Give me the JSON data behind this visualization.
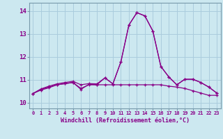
{
  "xlabel": "Windchill (Refroidissement éolien,°C)",
  "background_color": "#cce8f0",
  "line_color": "#880088",
  "grid_color": "#aaccdd",
  "x_ticks": [
    0,
    1,
    2,
    3,
    4,
    5,
    6,
    7,
    8,
    9,
    10,
    11,
    12,
    13,
    14,
    15,
    16,
    17,
    18,
    19,
    20,
    21,
    22,
    23
  ],
  "y_ticks": [
    10,
    11,
    12,
    13,
    14
  ],
  "ylim": [
    9.75,
    14.35
  ],
  "xlim": [
    -0.5,
    23.5
  ],
  "series1": [
    10.4,
    10.6,
    10.72,
    10.82,
    10.88,
    10.93,
    10.78,
    10.83,
    10.82,
    11.08,
    10.82,
    11.78,
    13.38,
    13.92,
    13.78,
    13.12,
    11.58,
    11.12,
    10.78,
    11.02,
    11.02,
    10.88,
    10.68,
    10.42
  ],
  "series2": [
    10.4,
    10.58,
    10.68,
    10.78,
    10.83,
    10.88,
    10.62,
    10.78,
    10.78,
    10.78,
    10.78,
    10.78,
    10.78,
    10.78,
    10.78,
    10.78,
    10.78,
    10.72,
    10.68,
    10.62,
    10.52,
    10.42,
    10.32,
    10.32
  ],
  "series3": [
    10.4,
    10.55,
    10.65,
    10.78,
    10.83,
    10.88,
    10.58,
    10.8,
    10.78,
    11.08,
    10.82,
    11.78,
    13.38,
    13.92,
    13.78,
    13.12,
    11.58,
    11.12,
    10.78,
    11.02,
    11.02,
    10.88,
    10.68,
    10.42
  ]
}
